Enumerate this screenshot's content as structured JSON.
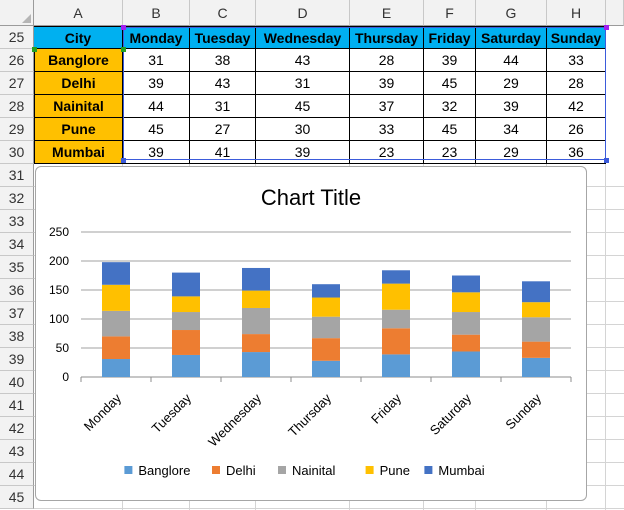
{
  "spreadsheet": {
    "columns": [
      "A",
      "B",
      "C",
      "D",
      "E",
      "F",
      "G",
      "H"
    ],
    "rows": [
      "25",
      "26",
      "27",
      "28",
      "29",
      "30",
      "31",
      "32",
      "33",
      "34",
      "35",
      "36",
      "37",
      "38",
      "39",
      "40",
      "41",
      "42",
      "43",
      "44",
      "45"
    ],
    "table": {
      "headers": [
        "City",
        "Monday",
        "Tuesday",
        "Wednesday",
        "Thursday",
        "Friday",
        "Saturday",
        "Sunday"
      ],
      "data": [
        {
          "city": "Banglore",
          "values": [
            "31",
            "38",
            "43",
            "28",
            "39",
            "44",
            "33"
          ]
        },
        {
          "city": "Delhi",
          "values": [
            "39",
            "43",
            "31",
            "39",
            "45",
            "29",
            "28"
          ]
        },
        {
          "city": "Nainital",
          "values": [
            "44",
            "31",
            "45",
            "37",
            "32",
            "39",
            "42"
          ]
        },
        {
          "city": "Pune",
          "values": [
            "45",
            "27",
            "30",
            "33",
            "45",
            "34",
            "26"
          ]
        },
        {
          "city": "Mumbai",
          "values": [
            "39",
            "41",
            "39",
            "23",
            "23",
            "29",
            "36"
          ]
        }
      ]
    },
    "colors": {
      "header_fill": "#00b0f0",
      "city_fill": "#ffc000",
      "selection": "#3b5bdb"
    }
  },
  "chart_data": {
    "type": "bar",
    "stacked": true,
    "title": "Chart Title",
    "categories": [
      "Monday",
      "Tuesday",
      "Wednesday",
      "Thursday",
      "Friday",
      "Saturday",
      "Sunday"
    ],
    "series": [
      {
        "name": "Banglore",
        "color": "#5b9bd5",
        "values": [
          31,
          38,
          43,
          28,
          39,
          44,
          33
        ]
      },
      {
        "name": "Delhi",
        "color": "#ed7d31",
        "values": [
          39,
          43,
          31,
          39,
          45,
          29,
          28
        ]
      },
      {
        "name": "Nainital",
        "color": "#a5a5a5",
        "values": [
          44,
          31,
          45,
          37,
          32,
          39,
          42
        ]
      },
      {
        "name": "Pune",
        "color": "#ffc000",
        "values": [
          45,
          27,
          30,
          33,
          45,
          34,
          26
        ]
      },
      {
        "name": "Mumbai",
        "color": "#4472c4",
        "values": [
          39,
          41,
          39,
          23,
          23,
          29,
          36
        ]
      }
    ],
    "ylim": [
      0,
      250
    ],
    "yticks": [
      "0",
      "50",
      "100",
      "150",
      "200",
      "250"
    ],
    "ytick_values": [
      0,
      50,
      100,
      150,
      200,
      250
    ],
    "grid": true,
    "legend_position": "bottom"
  }
}
